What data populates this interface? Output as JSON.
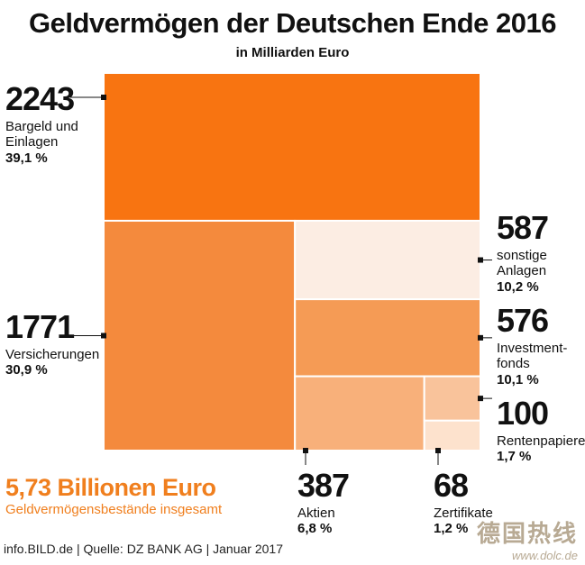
{
  "title": "Geldvermögen der Deutschen Ende 2016",
  "subtitle": "in Milliarden Euro",
  "total": {
    "value": "5,73 Billionen Euro",
    "label": "Geldvermögensbestände insgesamt"
  },
  "source": "info.BILD.de | Quelle: DZ BANK AG | Januar 2017",
  "watermark": {
    "cn": "德国热线",
    "url": "www.dolc.de"
  },
  "colors": {
    "accent": "#f07f1e",
    "background": "#ffffff"
  },
  "chart_data": {
    "type": "treemap",
    "title": "Geldvermögen der Deutschen Ende 2016",
    "subtitle": "in Milliarden Euro",
    "unit": "Mrd. Euro",
    "items": [
      {
        "name": "Bargeld und Einlagen",
        "name_lines": [
          "Bargeld und",
          "Einlagen"
        ],
        "value": 2243,
        "value_label": "2243",
        "percent": "39,1 %",
        "color": "#f87411"
      },
      {
        "name": "Versicherungen",
        "name_lines": [
          "Versicherungen"
        ],
        "value": 1771,
        "value_label": "1771",
        "percent": "30,9 %",
        "color": "#f48a3d"
      },
      {
        "name": "sonstige Anlagen",
        "name_lines": [
          "sonstige",
          "Anlagen"
        ],
        "value": 587,
        "value_label": "587",
        "percent": "10,2 %",
        "color": "#fcede3"
      },
      {
        "name": "Investmentfonds",
        "name_lines": [
          "Investment-",
          "fonds"
        ],
        "value": 576,
        "value_label": "576",
        "percent": "10,1 %",
        "color": "#f59b55"
      },
      {
        "name": "Aktien",
        "name_lines": [
          "Aktien"
        ],
        "value": 387,
        "value_label": "387",
        "percent": "6,8 %",
        "color": "#f8b07a"
      },
      {
        "name": "Zertifikate",
        "name_lines": [
          "Zertifikate"
        ],
        "value": 68,
        "value_label": "68",
        "percent": "1,2 %",
        "color": "#fde2cd"
      },
      {
        "name": "Rentenpapiere",
        "name_lines": [
          "Rentenpapiere"
        ],
        "value": 100,
        "value_label": "100",
        "percent": "1,7 %",
        "color": "#f9c39b"
      }
    ]
  }
}
